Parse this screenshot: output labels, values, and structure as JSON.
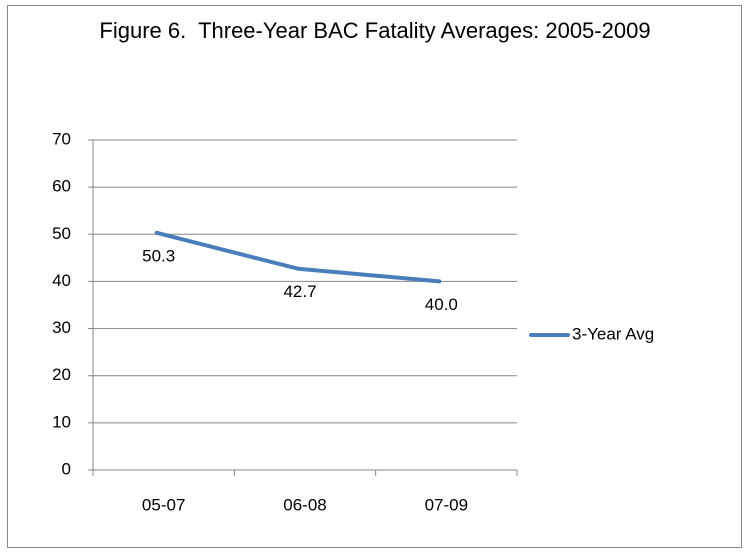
{
  "chart_data": {
    "type": "line",
    "title": "Figure 6.  Three-Year BAC Fatality Averages: 2005-2009",
    "categories": [
      "05-07",
      "06-08",
      "07-09"
    ],
    "series": [
      {
        "name": "3-Year Avg",
        "color": "#4a7ebb",
        "values": [
          50.3,
          42.7,
          40.0
        ],
        "value_labels": [
          "50.3",
          "42.7",
          "40.0"
        ]
      }
    ],
    "ylim": [
      0,
      70
    ],
    "yticks": [
      0,
      10,
      20,
      30,
      40,
      50,
      60,
      70
    ],
    "grid": true,
    "legend": "right"
  }
}
